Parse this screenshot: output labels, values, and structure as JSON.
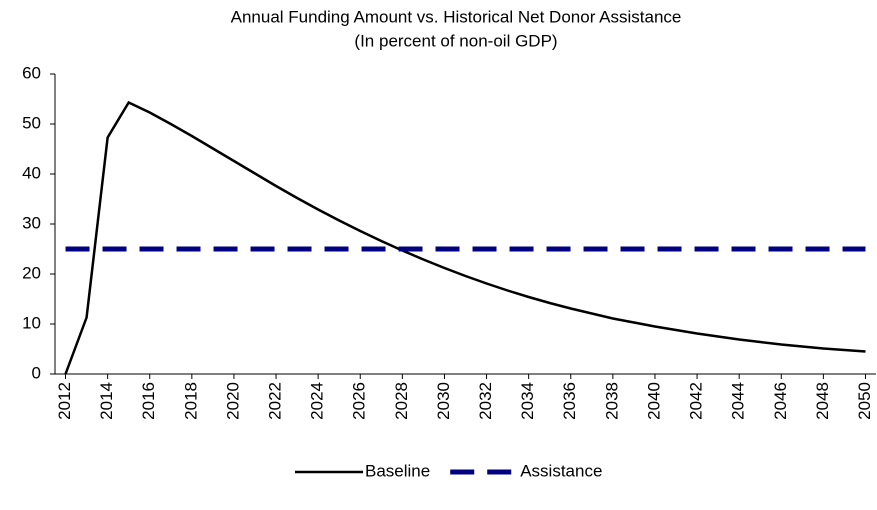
{
  "chart_data": {
    "type": "line",
    "title": "Annual Funding Amount vs. Historical Net Donor Assistance",
    "subtitle": "(In percent of non-oil GDP)",
    "x": [
      2012,
      2013,
      2014,
      2015,
      2016,
      2017,
      2018,
      2019,
      2020,
      2021,
      2022,
      2023,
      2024,
      2025,
      2026,
      2027,
      2028,
      2029,
      2030,
      2031,
      2032,
      2033,
      2034,
      2035,
      2036,
      2037,
      2038,
      2039,
      2040,
      2041,
      2042,
      2043,
      2044,
      2045,
      2046,
      2047,
      2048,
      2049,
      2050
    ],
    "series": [
      {
        "name": "Baseline",
        "color": "#000000",
        "dash": false,
        "values": [
          0,
          11.3,
          47.3,
          54.3,
          52.3,
          50.0,
          47.6,
          45.1,
          42.6,
          40.1,
          37.6,
          35.2,
          32.9,
          30.7,
          28.6,
          26.6,
          24.7,
          22.9,
          21.2,
          19.6,
          18.1,
          16.7,
          15.4,
          14.2,
          13.1,
          12.1,
          11.1,
          10.3,
          9.5,
          8.8,
          8.1,
          7.5,
          6.9,
          6.4,
          5.9,
          5.5,
          5.1,
          4.8,
          4.5
        ]
      },
      {
        "name": "Assistance",
        "color": "#000080",
        "dash": true,
        "values": [
          25,
          25,
          25,
          25,
          25,
          25,
          25,
          25,
          25,
          25,
          25,
          25,
          25,
          25,
          25,
          25,
          25,
          25,
          25,
          25,
          25,
          25,
          25,
          25,
          25,
          25,
          25,
          25,
          25,
          25,
          25,
          25,
          25,
          25,
          25,
          25,
          25,
          25,
          25
        ]
      }
    ],
    "xlim": [
      2011.5,
      2050.5
    ],
    "xticks": [
      2012,
      2014,
      2016,
      2018,
      2020,
      2022,
      2024,
      2026,
      2028,
      2030,
      2032,
      2034,
      2036,
      2038,
      2040,
      2042,
      2044,
      2046,
      2048,
      2050
    ],
    "ylim": [
      0,
      60
    ],
    "yticks": [
      0,
      10,
      20,
      30,
      40,
      50,
      60
    ],
    "grid": false,
    "legend": "bottom"
  }
}
